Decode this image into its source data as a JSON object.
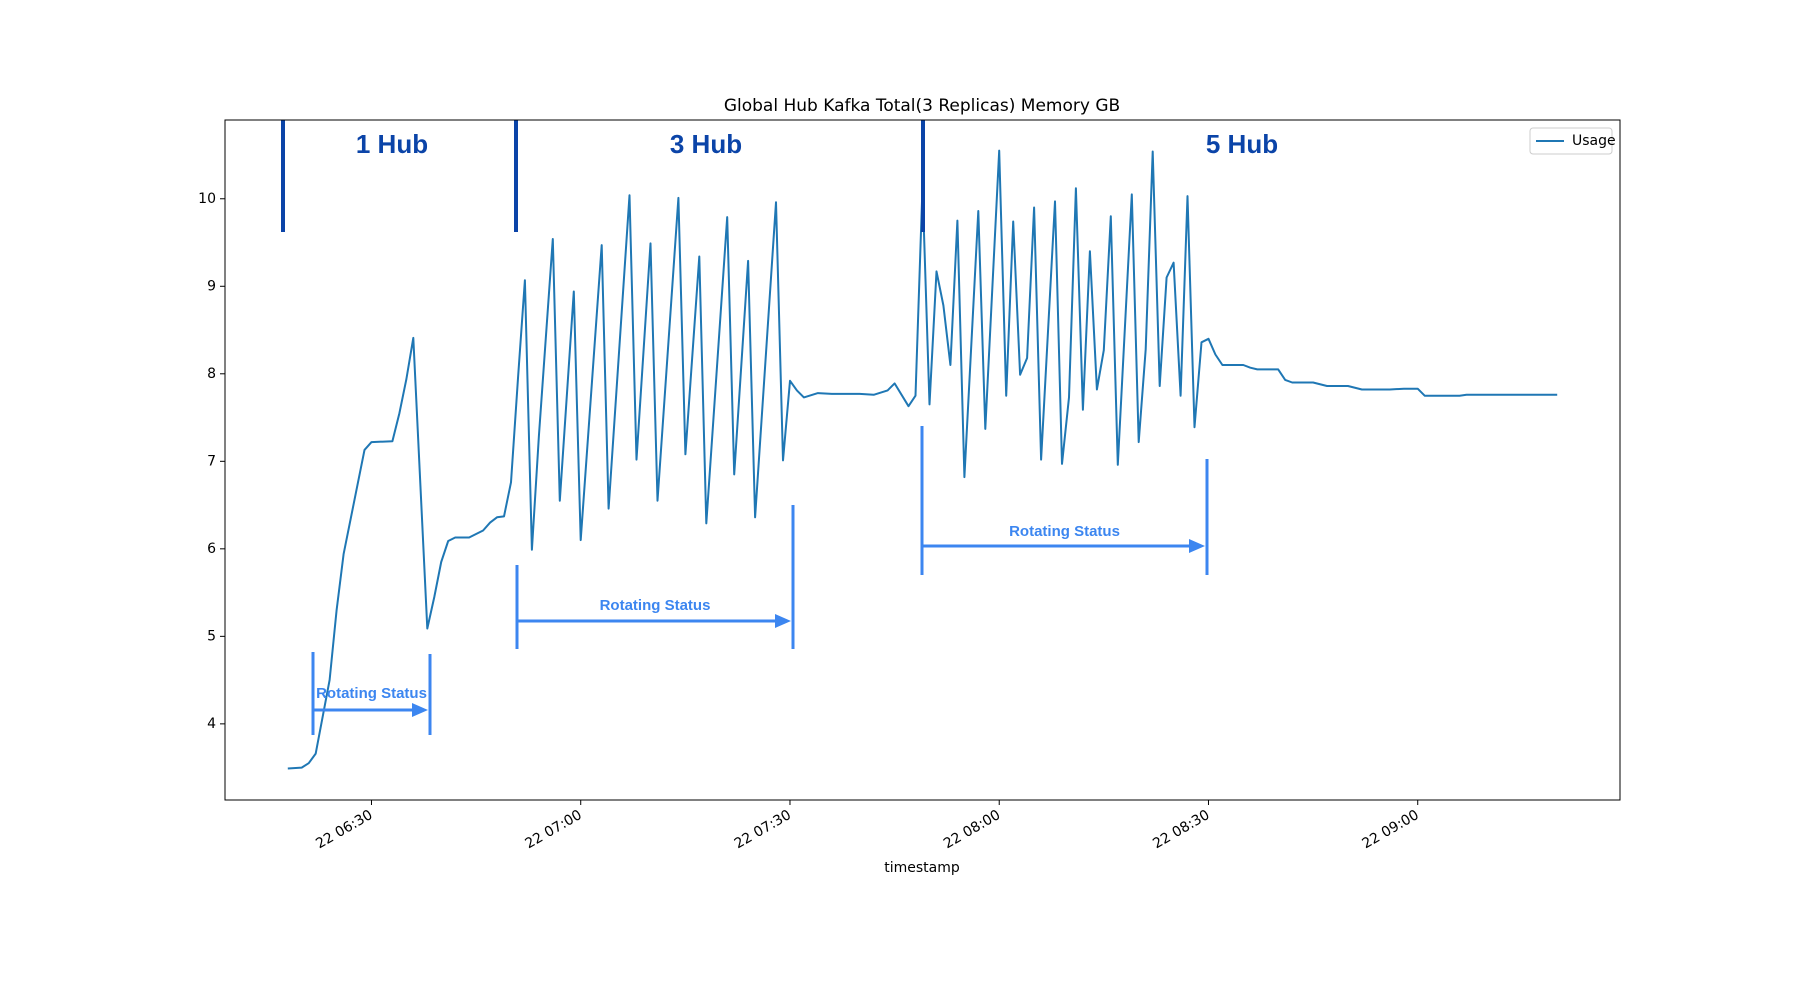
{
  "chart_data": {
    "type": "line",
    "title": "Global Hub Kafka Total(3 Replicas) Memory GB",
    "x_label": "timestamp",
    "x": [
      "22 06:18",
      "22 06:20",
      "22 06:21",
      "22 06:22",
      "22 06:24",
      "22 06:25",
      "22 06:26",
      "22 06:29",
      "22 06:30",
      "22 06:33",
      "22 06:34",
      "22 06:35",
      "22 06:36",
      "22 06:38",
      "22 06:39",
      "22 06:40",
      "22 06:41",
      "22 06:42",
      "22 06:44",
      "22 06:46",
      "22 06:47",
      "22 06:48",
      "22 06:49",
      "22 06:50",
      "22 06:51",
      "22 06:52",
      "22 06:53",
      "22 06:54",
      "22 06:56",
      "22 06:57",
      "22 06:59",
      "22 07:00",
      "22 07:03",
      "22 07:04",
      "22 07:07",
      "22 07:08",
      "22 07:10",
      "22 07:11",
      "22 07:14",
      "22 07:15",
      "22 07:17",
      "22 07:18",
      "22 07:21",
      "22 07:22",
      "22 07:24",
      "22 07:25",
      "22 07:28",
      "22 07:29",
      "22 07:30",
      "22 07:31",
      "22 07:32",
      "22 07:34",
      "22 07:36",
      "22 07:40",
      "22 07:42",
      "22 07:44",
      "22 07:45",
      "22 07:47",
      "22 07:48",
      "22 07:49",
      "22 07:50",
      "22 07:51",
      "22 07:52",
      "22 07:53",
      "22 07:54",
      "22 07:55",
      "22 07:57",
      "22 07:58",
      "22 08:00",
      "22 08:01",
      "22 08:02",
      "22 08:03",
      "22 08:04",
      "22 08:05",
      "22 08:06",
      "22 08:08",
      "22 08:09",
      "22 08:10",
      "22 08:11",
      "22 08:12",
      "22 08:13",
      "22 08:14",
      "22 08:15",
      "22 08:16",
      "22 08:17",
      "22 08:19",
      "22 08:20",
      "22 08:21",
      "22 08:22",
      "22 08:23",
      "22 08:24",
      "22 08:25",
      "22 08:26",
      "22 08:27",
      "22 08:28",
      "22 08:29",
      "22 08:30",
      "22 08:31",
      "22 08:32",
      "22 08:35",
      "22 08:36",
      "22 08:37",
      "22 08:40",
      "22 08:41",
      "22 08:42",
      "22 08:45",
      "22 08:47",
      "22 08:50",
      "22 08:52",
      "22 08:56",
      "22 08:58",
      "22 09:00",
      "22 09:01",
      "22 09:06",
      "22 09:07",
      "22 09:20"
    ],
    "series": [
      {
        "name": "Usage",
        "color": "#1f77b4",
        "values": [
          3.49,
          3.5,
          3.55,
          3.66,
          4.5,
          5.3,
          5.94,
          7.13,
          7.22,
          7.23,
          7.55,
          7.94,
          8.41,
          5.09,
          5.45,
          5.85,
          6.09,
          6.13,
          6.13,
          6.21,
          6.3,
          6.36,
          6.37,
          6.76,
          7.95,
          9.07,
          5.99,
          7.29,
          9.54,
          6.55,
          8.94,
          6.1,
          9.47,
          6.46,
          10.04,
          7.02,
          9.49,
          6.55,
          10.01,
          7.08,
          9.34,
          6.29,
          9.79,
          6.85,
          9.29,
          6.36,
          9.96,
          7.01,
          7.92,
          7.81,
          7.73,
          7.78,
          7.77,
          7.77,
          7.76,
          7.81,
          7.89,
          7.63,
          7.75,
          10.14,
          7.65,
          9.17,
          8.78,
          8.1,
          9.75,
          6.82,
          9.86,
          7.37,
          10.55,
          7.75,
          9.74,
          7.99,
          8.18,
          9.9,
          7.02,
          9.97,
          6.97,
          7.73,
          10.12,
          7.59,
          9.4,
          7.82,
          8.27,
          9.8,
          6.96,
          10.05,
          7.22,
          8.28,
          10.54,
          7.86,
          9.1,
          9.27,
          7.75,
          10.03,
          7.39,
          8.36,
          8.4,
          8.22,
          8.1,
          8.1,
          8.07,
          8.05,
          8.05,
          7.93,
          7.9,
          7.9,
          7.86,
          7.86,
          7.82,
          7.82,
          7.83,
          7.83,
          7.75,
          7.75,
          7.76,
          7.76
        ]
      }
    ],
    "xlim": [
      "22 06:09",
      "22 09:29"
    ],
    "xticks": [
      "22 06:30",
      "22 07:00",
      "22 07:30",
      "22 08:00",
      "22 08:30",
      "22 09:00"
    ],
    "ylim": [
      3.13,
      10.9
    ],
    "yticks": [
      4,
      5,
      6,
      7,
      8,
      9,
      10
    ],
    "legend": "upper right",
    "annotations": [
      "1 Hub",
      "3 Hub",
      "5 Hub",
      "Rotating Status",
      "Rotating Status",
      "Rotating Status"
    ]
  }
}
